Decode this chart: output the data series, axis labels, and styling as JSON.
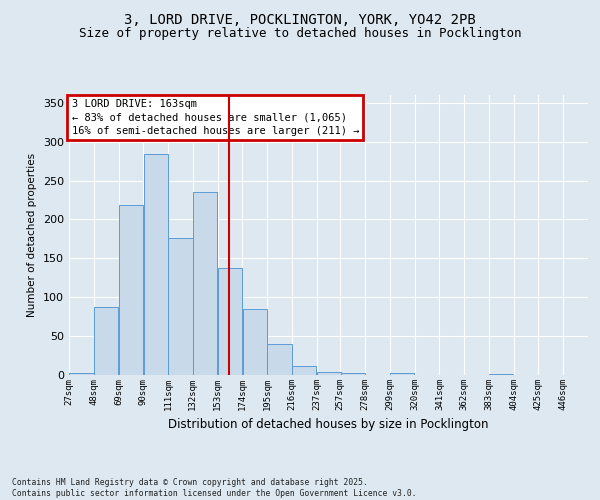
{
  "title_line1": "3, LORD DRIVE, POCKLINGTON, YORK, YO42 2PB",
  "title_line2": "Size of property relative to detached houses in Pocklington",
  "xlabel": "Distribution of detached houses by size in Pocklington",
  "ylabel": "Number of detached properties",
  "bin_edges": [
    27,
    48,
    69,
    90,
    111,
    132,
    153,
    174,
    195,
    216,
    237,
    257,
    278,
    299,
    320,
    341,
    362,
    383,
    404,
    425,
    446
  ],
  "bar_heights": [
    2,
    87,
    219,
    284,
    176,
    235,
    138,
    85,
    40,
    11,
    4,
    3,
    0,
    3,
    0,
    0,
    0,
    1,
    0,
    0
  ],
  "tick_labels": [
    "27sqm",
    "48sqm",
    "69sqm",
    "90sqm",
    "111sqm",
    "132sqm",
    "153sqm",
    "174sqm",
    "195sqm",
    "216sqm",
    "237sqm",
    "257sqm",
    "278sqm",
    "299sqm",
    "320sqm",
    "341sqm",
    "362sqm",
    "383sqm",
    "404sqm",
    "425sqm",
    "446sqm"
  ],
  "bar_color": "#c8d9ea",
  "bar_edge_color": "#5b9bd5",
  "vline_x_index": 6,
  "vline_color": "#cc0000",
  "annotation_text": "3 LORD DRIVE: 163sqm\n← 83% of detached houses are smaller (1,065)\n16% of semi-detached houses are larger (211) →",
  "annotation_box_color": "#cc0000",
  "ylim": [
    0,
    360
  ],
  "yticks": [
    0,
    50,
    100,
    150,
    200,
    250,
    300,
    350
  ],
  "bg_color": "#dde8f0",
  "plot_bg_color": "#dde8f0",
  "grid_color": "#ffffff",
  "footer_text": "Contains HM Land Registry data © Crown copyright and database right 2025.\nContains public sector information licensed under the Open Government Licence v3.0.",
  "title_fontsize": 10,
  "subtitle_fontsize": 9,
  "ylabel_text": "Number of detached properties"
}
